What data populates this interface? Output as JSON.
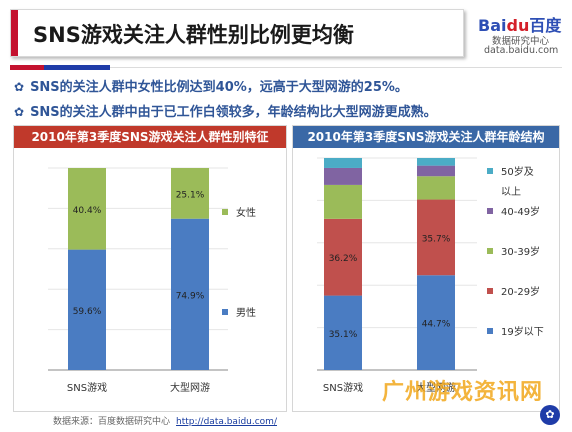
{
  "title": "SNS游戏关注人群性别比例更均衡",
  "logo": {
    "brand_a": "Bai",
    "brand_b": "du",
    "brand_c": "百度",
    "subtitle": "数据研究中心",
    "url": "data.baidu.com"
  },
  "bullets": [
    "SNS的关注人群中女性比例达到40%，远高于大型网游的25%。",
    "SNS的关注人群中由于已工作白领较多，年龄结构比大型网游更成熟。"
  ],
  "source": {
    "label": "数据来源：百度数据研究中心",
    "url": "http://data.baidu.com/"
  },
  "watermark": "广州游戏资讯网",
  "colors": {
    "blue": "#4a7cc2",
    "red": "#c0504d",
    "green": "#9bbb59",
    "purple": "#8064a2",
    "aqua": "#4bacc6"
  },
  "chart_data": [
    {
      "type": "bar",
      "stacked": true,
      "title": "2010年第3季度SNS游戏关注人群性别特征",
      "categories": [
        "SNS游戏",
        "大型网游"
      ],
      "series": [
        {
          "name": "男性",
          "values": [
            59.6,
            74.9
          ],
          "labels": [
            "59.6%",
            "74.9%"
          ],
          "color": "#4a7cc2"
        },
        {
          "name": "女性",
          "values": [
            40.4,
            25.1
          ],
          "labels": [
            "40.4%",
            "25.1%"
          ],
          "color": "#9bbb59"
        }
      ],
      "legend": "right",
      "ylim": [
        0,
        100
      ]
    },
    {
      "type": "bar",
      "stacked": true,
      "title": "2010年第3季度SNS游戏关注人群年龄结构",
      "categories": [
        "SNS游戏",
        "大型网游"
      ],
      "series": [
        {
          "name": "19岁以下",
          "values": [
            35.1,
            44.7
          ],
          "labels": [
            "35.1%",
            "44.7%"
          ],
          "color": "#4a7cc2"
        },
        {
          "name": "20-29岁",
          "values": [
            36.2,
            35.7
          ],
          "labels": [
            "36.2%",
            "35.7%"
          ],
          "color": "#c0504d"
        },
        {
          "name": "30-39岁",
          "values": [
            16.0,
            11.0
          ],
          "labels": [
            "",
            ""
          ],
          "color": "#9bbb59"
        },
        {
          "name": "40-49岁",
          "values": [
            8.0,
            5.0
          ],
          "labels": [
            "",
            ""
          ],
          "color": "#8064a2"
        },
        {
          "name": "50岁及以上",
          "values": [
            4.7,
            3.6
          ],
          "labels": [
            "",
            ""
          ],
          "color": "#4bacc6"
        }
      ],
      "legend": "right",
      "ylim": [
        0,
        100
      ]
    }
  ]
}
